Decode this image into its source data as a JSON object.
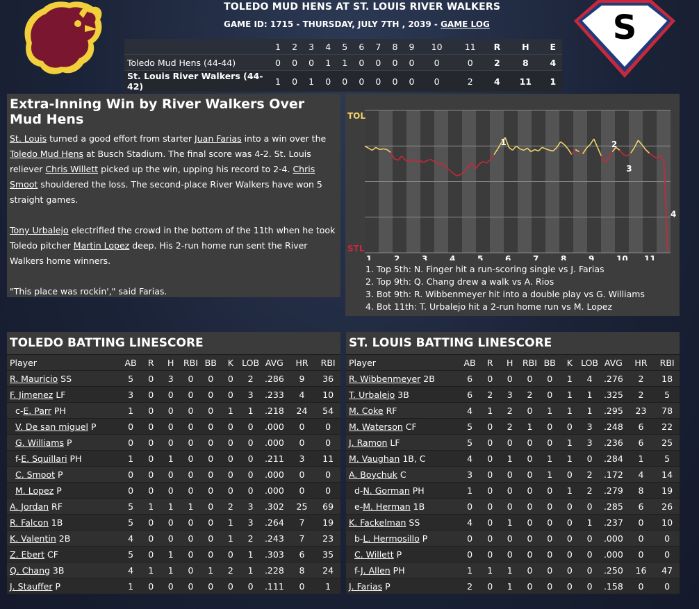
{
  "header": {
    "title": "TOLEDO MUD HENS AT ST. LOUIS RIVER WALKERS",
    "game_info": "GAME ID: 1715 - THURSDAY, JULY 7TH , 2039 - ",
    "game_log_link": "GAME LOG",
    "right_logo_letter": "S"
  },
  "linescore": {
    "headers": [
      "1",
      "2",
      "3",
      "4",
      "5",
      "6",
      "7",
      "8",
      "9",
      "10",
      "11",
      "R",
      "H",
      "E"
    ],
    "rows": [
      {
        "team": "Toledo Mud Hens (44-44)",
        "values": [
          "0",
          "0",
          "0",
          "1",
          "1",
          "0",
          "0",
          "0",
          "0",
          "0",
          "0",
          "2",
          "8",
          "4"
        ]
      },
      {
        "team": "St. Louis River Walkers (44-42)",
        "values": [
          "1",
          "0",
          "1",
          "0",
          "0",
          "0",
          "0",
          "0",
          "0",
          "0",
          "2",
          "4",
          "11",
          "1"
        ]
      }
    ]
  },
  "recap": {
    "headline": "Extra-Inning Win by River Walkers Over Mud Hens",
    "paragraphs": [
      [
        {
          "t": "St. Louis",
          "l": true
        },
        {
          "t": " turned a good effort from starter "
        },
        {
          "t": "Juan Farias",
          "l": true
        },
        {
          "t": " into a win over the "
        },
        {
          "t": "Toledo Mud Hens",
          "l": true
        },
        {
          "t": " at Busch Stadium. The final score was 4-2. St. Louis reliever "
        },
        {
          "t": "Chris Willett",
          "l": true
        },
        {
          "t": " picked up the win, upping his record to 2-4. "
        },
        {
          "t": "Chris Smoot",
          "l": true
        },
        {
          "t": " shouldered the loss. The second-place River Walkers have won 5 straight games."
        }
      ],
      [
        {
          "t": "Tony Urbalejo",
          "l": true
        },
        {
          "t": " electrified the crowd in the bottom of the 11th when he took Toledo pitcher "
        },
        {
          "t": "Martin Lopez",
          "l": true
        },
        {
          "t": " deep. His 2-run home run sent the River Walkers home winners."
        }
      ],
      [
        {
          "t": "\"This place was rockin',\" said Farias."
        }
      ]
    ]
  },
  "chart_data": {
    "type": "line",
    "y_top_label": "TOL",
    "y_bottom_label": "STL",
    "top_color": "#f1d36b",
    "bottom_color": "#c8283b",
    "inning_labels": [
      "1",
      "2",
      "3",
      "4",
      "5",
      "6",
      "7",
      "8",
      "9",
      "10",
      "11"
    ],
    "values": [
      0.5,
      0.47,
      0.44,
      0.48,
      0.45,
      0.46,
      0.45,
      0.41,
      0.32,
      0.3,
      0.36,
      0.3,
      0.28,
      0.31,
      0.28,
      0.29,
      0.27,
      0.3,
      0.31,
      0.27,
      0.24,
      0.26,
      0.2,
      0.16,
      0.11,
      0.08,
      0.1,
      0.14,
      0.22,
      0.26,
      0.18,
      0.25,
      0.28,
      0.26,
      0.31,
      0.38,
      0.46,
      0.55,
      0.62,
      0.48,
      0.44,
      0.5,
      0.46,
      0.44,
      0.47,
      0.42,
      0.45,
      0.43,
      0.48,
      0.46,
      0.44,
      0.43,
      0.48,
      0.56,
      0.52,
      0.46,
      0.38,
      0.45,
      0.42,
      0.39,
      0.47,
      0.52,
      0.6,
      0.48,
      0.36,
      0.27,
      0.33,
      0.42,
      0.48,
      0.44,
      0.38,
      0.36,
      0.4,
      0.48,
      0.58,
      0.52,
      0.45,
      0.4,
      0.36,
      0.33,
      0.36,
      0.28,
      -0.99
    ],
    "markers": [
      {
        "label": "1",
        "x": 36,
        "y": 0.55
      },
      {
        "label": "2",
        "x": 66,
        "y": 0.52
      },
      {
        "label": "3",
        "x": 70,
        "y": 0.18
      },
      {
        "label": "4",
        "x": 82,
        "y": -0.46
      }
    ],
    "notes": [
      "1. Top 5th: N. Finger hit a run-scoring single vs J. Farias",
      "2. Top 9th: Q. Chang drew a walk vs A. Rios",
      "3. Bot 9th: R. Wibbenmeyer hit into a double play vs G. Williams",
      "4. Bot 11th: T. Urbalejo hit a 2-run home run vs M. Lopez"
    ]
  },
  "batting": {
    "columns": [
      "Player",
      "AB",
      "R",
      "H",
      "RBI",
      "BB",
      "K",
      "LOB",
      "AVG",
      "HR",
      "RBI"
    ],
    "toledo": {
      "title": "TOLEDO BATTING LINESCORE",
      "rows": [
        {
          "pre": "",
          "name": "R. Mauricio",
          "pos": " SS",
          "indent": false,
          "stats": [
            "5",
            "0",
            "3",
            "0",
            "0",
            "0",
            "2",
            ".286",
            "9",
            "36"
          ]
        },
        {
          "pre": "",
          "name": "F. Jimenez",
          "pos": " LF",
          "indent": false,
          "stats": [
            "3",
            "0",
            "0",
            "0",
            "0",
            "0",
            "3",
            ".233",
            "4",
            "10"
          ]
        },
        {
          "pre": "c-",
          "name": "E. Parr",
          "pos": " PH",
          "indent": true,
          "stats": [
            "1",
            "0",
            "0",
            "0",
            "0",
            "1",
            "1",
            ".218",
            "24",
            "54"
          ]
        },
        {
          "pre": "",
          "name": "V. De san miguel",
          "pos": " P",
          "indent": true,
          "stats": [
            "0",
            "0",
            "0",
            "0",
            "0",
            "0",
            "0",
            ".000",
            "0",
            "0"
          ]
        },
        {
          "pre": "",
          "name": "G. Williams",
          "pos": " P",
          "indent": true,
          "stats": [
            "0",
            "0",
            "0",
            "0",
            "0",
            "0",
            "0",
            ".000",
            "0",
            "0"
          ]
        },
        {
          "pre": "f-",
          "name": "E. Squillari",
          "pos": " PH",
          "indent": true,
          "stats": [
            "1",
            "0",
            "1",
            "0",
            "0",
            "0",
            "0",
            ".211",
            "3",
            "11"
          ]
        },
        {
          "pre": "",
          "name": "C. Smoot",
          "pos": " P",
          "indent": true,
          "stats": [
            "0",
            "0",
            "0",
            "0",
            "0",
            "0",
            "0",
            ".000",
            "0",
            "0"
          ]
        },
        {
          "pre": "",
          "name": "M. Lopez",
          "pos": " P",
          "indent": true,
          "stats": [
            "0",
            "0",
            "0",
            "0",
            "0",
            "0",
            "0",
            ".000",
            "0",
            "0"
          ]
        },
        {
          "pre": "",
          "name": "A. Jordan",
          "pos": " RF",
          "indent": false,
          "stats": [
            "5",
            "1",
            "1",
            "1",
            "0",
            "2",
            "3",
            ".302",
            "25",
            "69"
          ]
        },
        {
          "pre": "",
          "name": "R. Falcon",
          "pos": " 1B",
          "indent": false,
          "stats": [
            "5",
            "0",
            "0",
            "0",
            "0",
            "1",
            "3",
            ".264",
            "7",
            "19"
          ]
        },
        {
          "pre": "",
          "name": "K. Valentin",
          "pos": " 2B",
          "indent": false,
          "stats": [
            "4",
            "0",
            "0",
            "0",
            "0",
            "1",
            "2",
            ".243",
            "7",
            "23"
          ]
        },
        {
          "pre": "",
          "name": "Z. Ebert",
          "pos": " CF",
          "indent": false,
          "stats": [
            "5",
            "0",
            "1",
            "0",
            "0",
            "0",
            "1",
            ".303",
            "6",
            "35"
          ]
        },
        {
          "pre": "",
          "name": "Q. Chang",
          "pos": " 3B",
          "indent": false,
          "stats": [
            "4",
            "1",
            "1",
            "0",
            "1",
            "2",
            "1",
            ".228",
            "8",
            "24"
          ]
        },
        {
          "pre": "",
          "name": "J. Stauffer",
          "pos": " P",
          "indent": false,
          "stats": [
            "1",
            "0",
            "0",
            "0",
            "0",
            "0",
            "0",
            ".111",
            "0",
            "1"
          ]
        }
      ]
    },
    "stlouis": {
      "title": "ST. LOUIS BATTING LINESCORE",
      "rows": [
        {
          "pre": "",
          "name": "R. Wibbenmeyer",
          "pos": " 2B",
          "indent": false,
          "stats": [
            "6",
            "0",
            "0",
            "0",
            "0",
            "1",
            "4",
            ".276",
            "2",
            "18"
          ]
        },
        {
          "pre": "",
          "name": "T. Urbalejo",
          "pos": " 3B",
          "indent": false,
          "stats": [
            "6",
            "2",
            "3",
            "2",
            "0",
            "1",
            "1",
            ".325",
            "2",
            "5"
          ]
        },
        {
          "pre": "",
          "name": "M. Coke",
          "pos": " RF",
          "indent": false,
          "stats": [
            "4",
            "1",
            "2",
            "0",
            "1",
            "1",
            "1",
            ".295",
            "23",
            "78"
          ]
        },
        {
          "pre": "",
          "name": "M. Waterson",
          "pos": " CF",
          "indent": false,
          "stats": [
            "5",
            "0",
            "2",
            "1",
            "0",
            "0",
            "3",
            ".248",
            "6",
            "22"
          ]
        },
        {
          "pre": "",
          "name": "J. Ramon",
          "pos": " LF",
          "indent": false,
          "stats": [
            "5",
            "0",
            "0",
            "0",
            "0",
            "1",
            "3",
            ".236",
            "6",
            "25"
          ]
        },
        {
          "pre": "",
          "name": "M. Vaughan",
          "pos": " 1B, C",
          "indent": false,
          "stats": [
            "4",
            "0",
            "1",
            "0",
            "1",
            "1",
            "0",
            ".284",
            "1",
            "5"
          ]
        },
        {
          "pre": "",
          "name": "A. Boychuk",
          "pos": " C",
          "indent": false,
          "stats": [
            "3",
            "0",
            "0",
            "0",
            "1",
            "0",
            "2",
            ".172",
            "4",
            "14"
          ]
        },
        {
          "pre": "d-",
          "name": "N. Gorman",
          "pos": " PH",
          "indent": true,
          "stats": [
            "1",
            "0",
            "0",
            "0",
            "0",
            "1",
            "2",
            ".279",
            "8",
            "19"
          ]
        },
        {
          "pre": "e-",
          "name": "M. Herman",
          "pos": " 1B",
          "indent": true,
          "stats": [
            "0",
            "0",
            "0",
            "0",
            "0",
            "0",
            "0",
            ".285",
            "6",
            "26"
          ]
        },
        {
          "pre": "",
          "name": "K. Fackelman",
          "pos": " SS",
          "indent": false,
          "stats": [
            "4",
            "0",
            "1",
            "0",
            "0",
            "0",
            "1",
            ".237",
            "0",
            "10"
          ]
        },
        {
          "pre": "b-",
          "name": "L. Hermosillo",
          "pos": " P",
          "indent": true,
          "stats": [
            "0",
            "0",
            "0",
            "0",
            "0",
            "0",
            "0",
            ".000",
            "0",
            "0"
          ]
        },
        {
          "pre": "",
          "name": "C. Willett",
          "pos": " P",
          "indent": true,
          "stats": [
            "0",
            "0",
            "0",
            "0",
            "0",
            "0",
            "0",
            ".000",
            "0",
            "0"
          ]
        },
        {
          "pre": "f-",
          "name": "J. Allen",
          "pos": " PH",
          "indent": true,
          "stats": [
            "1",
            "1",
            "1",
            "0",
            "0",
            "0",
            "0",
            ".250",
            "16",
            "47"
          ]
        },
        {
          "pre": "",
          "name": "J. Farias",
          "pos": " P",
          "indent": false,
          "stats": [
            "2",
            "0",
            "1",
            "0",
            "0",
            "0",
            "0",
            ".158",
            "0",
            "0"
          ]
        }
      ]
    }
  }
}
